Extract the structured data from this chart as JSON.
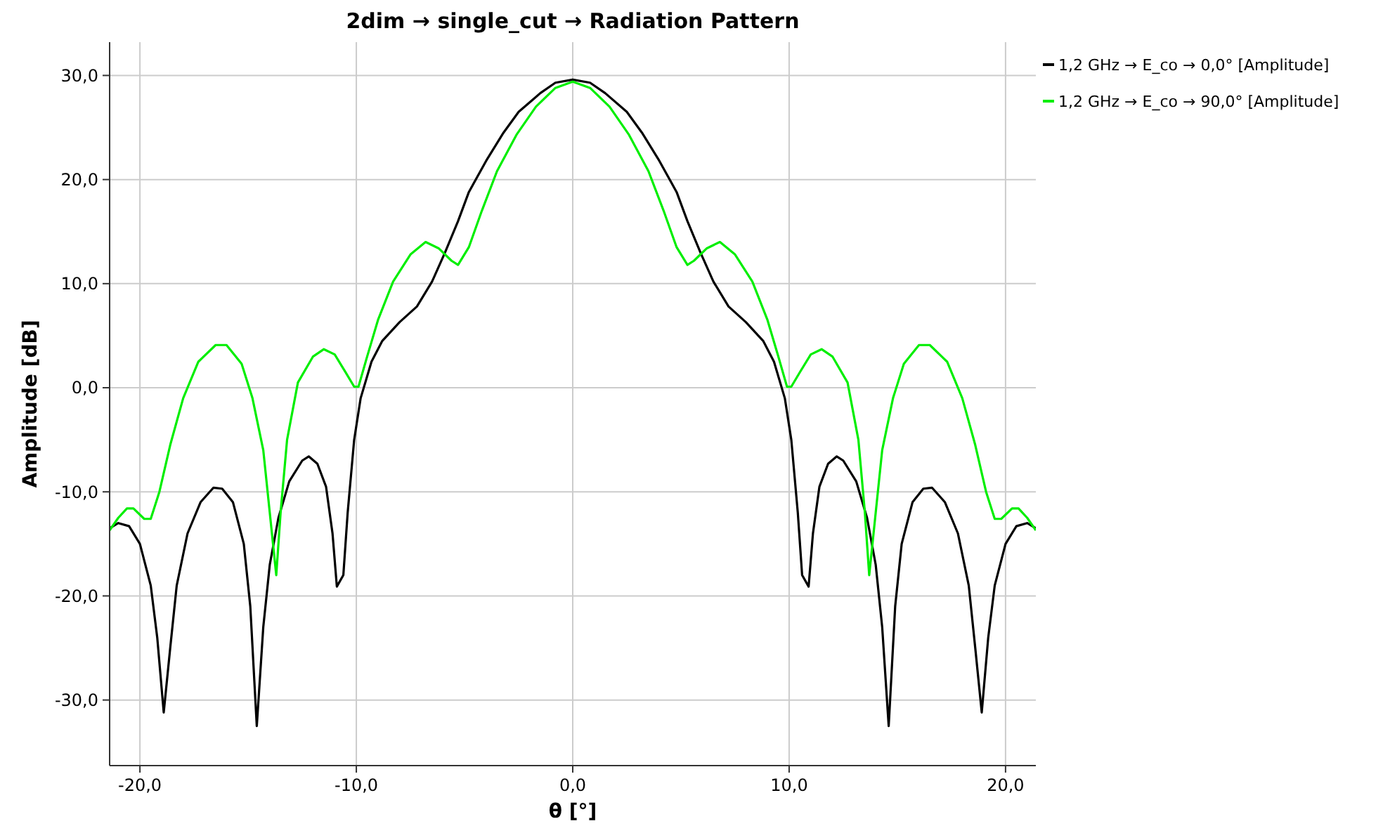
{
  "chart_data": {
    "type": "line",
    "title": "2dim → single_cut → Radiation Pattern",
    "xlabel": "θ [°]",
    "ylabel": "Amplitude [dB]",
    "xlim": [
      -21.4,
      21.4
    ],
    "ylim": [
      -36.3,
      33.2
    ],
    "xticks": [
      {
        "value": -20,
        "label": "-20,0"
      },
      {
        "value": -10,
        "label": "-10,0"
      },
      {
        "value": 0,
        "label": "0,0"
      },
      {
        "value": 10,
        "label": "10,0"
      },
      {
        "value": 20,
        "label": "20,0"
      }
    ],
    "yticks": [
      {
        "value": -30,
        "label": "-30,0"
      },
      {
        "value": -20,
        "label": "-20,0"
      },
      {
        "value": -10,
        "label": "-10,0"
      },
      {
        "value": 0,
        "label": "0,0"
      },
      {
        "value": 10,
        "label": "10,0"
      },
      {
        "value": 20,
        "label": "20,0"
      },
      {
        "value": 30,
        "label": "30,0"
      }
    ],
    "grid": true,
    "legend": "top right",
    "marker": "none",
    "line_style": "solid",
    "series": [
      {
        "name": "1,2 GHz → E_co → 0,0° [Amplitude]",
        "color": "#000000",
        "x": [
          -21.4,
          -21,
          -20.5,
          -20,
          -19.5,
          -19.2,
          -18.9,
          -18.6,
          -18.3,
          -17.8,
          -17.2,
          -16.6,
          -16.2,
          -15.7,
          -15.2,
          -14.9,
          -14.6,
          -14.3,
          -14,
          -13.6,
          -13.1,
          -12.5,
          -12.2,
          -11.8,
          -11.4,
          -11.1,
          -10.9,
          -10.6,
          -10.4,
          -10.1,
          -9.8,
          -9.3,
          -8.8,
          -8,
          -7.2,
          -6.5,
          -5.9,
          -5.3,
          -4.8,
          -4,
          -3.2,
          -2.5,
          -1.5,
          -0.8,
          0,
          0.8,
          1.5,
          2.5,
          3.2,
          4,
          4.8,
          5.3,
          5.9,
          6.5,
          7.2,
          8,
          8.8,
          9.3,
          9.8,
          10.1,
          10.4,
          10.6,
          10.9,
          11.1,
          11.4,
          11.8,
          12.2,
          12.5,
          13.1,
          13.6,
          14,
          14.3,
          14.6,
          14.9,
          15.2,
          15.7,
          16.2,
          16.6,
          17.2,
          17.8,
          18.3,
          18.6,
          18.9,
          19.2,
          19.5,
          20,
          20.5,
          21,
          21.4
        ],
        "values": [
          -13.5,
          -13,
          -13.3,
          -15,
          -19,
          -24,
          -31.2,
          -25,
          -19,
          -14,
          -11,
          -9.6,
          -9.7,
          -11,
          -15,
          -21,
          -32.5,
          -23,
          -17,
          -12.5,
          -9,
          -7,
          -6.6,
          -7.3,
          -9.5,
          -14,
          -19.1,
          -18,
          -12,
          -5,
          -1,
          2.5,
          4.5,
          6.3,
          7.8,
          10.2,
          13,
          16,
          18.8,
          21.8,
          24.5,
          26.5,
          28.3,
          29.3,
          29.6,
          29.3,
          28.3,
          26.5,
          24.5,
          21.8,
          18.8,
          16,
          13,
          10.2,
          7.8,
          6.3,
          4.5,
          2.5,
          -1,
          -5,
          -12,
          -18,
          -19.1,
          -14,
          -9.5,
          -7.3,
          -6.6,
          -7,
          -9,
          -12.5,
          -17,
          -23,
          -32.5,
          -21,
          -15,
          -11,
          -9.7,
          -9.6,
          -11,
          -14,
          -19,
          -25,
          -31.2,
          -24,
          -19,
          -15,
          -13.3,
          -13,
          -13.5
        ]
      },
      {
        "name": "1,2 GHz → E_co → 90,0° [Amplitude]",
        "color": "#00ee00",
        "x": [
          -21.4,
          -21,
          -20.6,
          -20.3,
          -19.8,
          -19.5,
          -19.1,
          -18.6,
          -18,
          -17.3,
          -16.5,
          -16,
          -15.3,
          -14.8,
          -14.3,
          -14,
          -13.7,
          -13.5,
          -13.2,
          -12.7,
          -12,
          -11.5,
          -11,
          -10.5,
          -10.1,
          -9.9,
          -9.5,
          -9,
          -8.3,
          -7.5,
          -6.8,
          -6.2,
          -5.6,
          -5.3,
          -4.8,
          -4.2,
          -3.5,
          -2.6,
          -1.7,
          -0.8,
          0,
          0.8,
          1.7,
          2.6,
          3.5,
          4.2,
          4.8,
          5.3,
          5.6,
          6.2,
          6.8,
          7.5,
          8.3,
          9,
          9.5,
          9.9,
          10.1,
          10.5,
          11,
          11.5,
          12,
          12.7,
          13.2,
          13.5,
          13.7,
          14,
          14.3,
          14.8,
          15.3,
          16,
          16.5,
          17.3,
          18,
          18.6,
          19.1,
          19.5,
          19.8,
          20.3,
          20.6,
          21,
          21.4
        ],
        "values": [
          -13.7,
          -12.5,
          -11.6,
          -11.6,
          -12.6,
          -12.6,
          -10,
          -5.5,
          -1,
          2.5,
          4.1,
          4.1,
          2.3,
          -1,
          -6,
          -12,
          -18,
          -12,
          -5,
          0.5,
          3,
          3.7,
          3.2,
          1.5,
          0.1,
          0.1,
          3,
          6.5,
          10.2,
          12.8,
          14,
          13.4,
          12.2,
          11.8,
          13.5,
          17,
          20.8,
          24.3,
          27,
          28.8,
          29.4,
          28.8,
          27,
          24.3,
          20.8,
          17,
          13.5,
          11.8,
          12.2,
          13.4,
          14,
          12.8,
          10.2,
          6.5,
          3,
          0.1,
          0.1,
          1.5,
          3.2,
          3.7,
          3,
          0.5,
          -5,
          -12,
          -18,
          -12,
          -6,
          -1,
          2.3,
          4.1,
          4.1,
          2.5,
          -1,
          -5.5,
          -10,
          -12.6,
          -12.6,
          -11.6,
          -11.6,
          -12.5,
          -13.7
        ]
      }
    ]
  }
}
